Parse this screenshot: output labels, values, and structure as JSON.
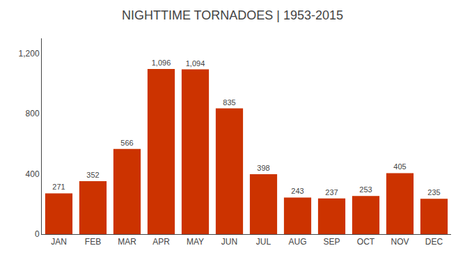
{
  "chart_data": {
    "type": "bar",
    "title": "NIGHTTIME TORNADOES | 1953-2015",
    "categories": [
      "JAN",
      "FEB",
      "MAR",
      "APR",
      "MAY",
      "JUN",
      "JUL",
      "AUG",
      "SEP",
      "OCT",
      "NOV",
      "DEC"
    ],
    "values": [
      271,
      352,
      566,
      1096,
      1094,
      835,
      398,
      243,
      237,
      253,
      405,
      235
    ],
    "value_labels": [
      "271",
      "352",
      "566",
      "1,096",
      "1,094",
      "835",
      "398",
      "243",
      "237",
      "253",
      "405",
      "235"
    ],
    "data_labels": true,
    "color": "#cc3300",
    "ylim": [
      0,
      1300
    ],
    "yticks": [
      0,
      400,
      800,
      {
        "value": 1200,
        "label": "1,200"
      }
    ],
    "grid": false
  }
}
